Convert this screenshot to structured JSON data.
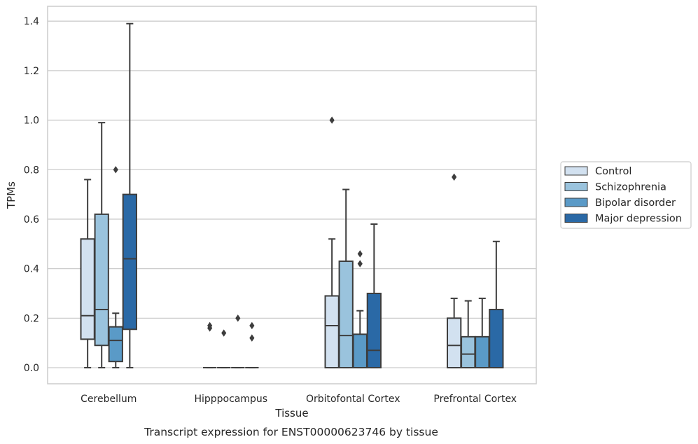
{
  "caption": "Transcript expression for ENST00000623746 by tissue",
  "chart_data": {
    "type": "boxplot",
    "xlabel": "Tissue",
    "ylabel": "TPMs",
    "ylim": [
      -0.065,
      1.46
    ],
    "yticks": [
      0.0,
      0.2,
      0.4,
      0.6,
      0.8,
      1.0,
      1.2,
      1.4
    ],
    "ytick_labels": [
      "0.0",
      "0.2",
      "0.4",
      "0.6",
      "0.8",
      "1.0",
      "1.2",
      "1.4"
    ],
    "grid": "horizontal",
    "legend_position": "right",
    "categories": [
      "Cerebellum",
      "Hipppocampus",
      "Orbitofontal Cortex",
      "Prefrontal Cortex"
    ],
    "series": [
      {
        "name": "Control",
        "color": "#d2e1f0",
        "boxes": [
          {
            "whislo": 0.0,
            "q1": 0.115,
            "med": 0.21,
            "q3": 0.52,
            "whishi": 0.76,
            "fliers": []
          },
          {
            "whislo": 0.0,
            "q1": 0.0,
            "med": 0.0,
            "q3": 0.0,
            "whishi": 0.0,
            "fliers": [
              0.16,
              0.17
            ]
          },
          {
            "whislo": 0.0,
            "q1": 0.0,
            "med": 0.17,
            "q3": 0.29,
            "whishi": 0.52,
            "fliers": [
              1.0
            ]
          },
          {
            "whislo": 0.0,
            "q1": 0.0,
            "med": 0.09,
            "q3": 0.2,
            "whishi": 0.28,
            "fliers": [
              0.77
            ]
          }
        ]
      },
      {
        "name": "Schizophrenia",
        "color": "#9ac3dd",
        "boxes": [
          {
            "whislo": 0.0,
            "q1": 0.09,
            "med": 0.235,
            "q3": 0.62,
            "whishi": 0.99,
            "fliers": []
          },
          {
            "whislo": 0.0,
            "q1": 0.0,
            "med": 0.0,
            "q3": 0.0,
            "whishi": 0.0,
            "fliers": [
              0.14
            ]
          },
          {
            "whislo": 0.0,
            "q1": 0.0,
            "med": 0.13,
            "q3": 0.43,
            "whishi": 0.72,
            "fliers": []
          },
          {
            "whislo": 0.0,
            "q1": 0.0,
            "med": 0.055,
            "q3": 0.125,
            "whishi": 0.27,
            "fliers": []
          }
        ]
      },
      {
        "name": "Bipolar disorder",
        "color": "#5a9ac7",
        "boxes": [
          {
            "whislo": 0.0,
            "q1": 0.025,
            "med": 0.11,
            "q3": 0.165,
            "whishi": 0.22,
            "fliers": [
              0.8
            ]
          },
          {
            "whislo": 0.0,
            "q1": 0.0,
            "med": 0.0,
            "q3": 0.0,
            "whishi": 0.0,
            "fliers": [
              0.2
            ]
          },
          {
            "whislo": 0.0,
            "q1": 0.0,
            "med": 0.0,
            "q3": 0.135,
            "whishi": 0.23,
            "fliers": [
              0.42,
              0.46
            ]
          },
          {
            "whislo": 0.0,
            "q1": 0.0,
            "med": 0.0,
            "q3": 0.125,
            "whishi": 0.28,
            "fliers": []
          }
        ]
      },
      {
        "name": "Major depression",
        "color": "#2a69a6",
        "boxes": [
          {
            "whislo": 0.0,
            "q1": 0.155,
            "med": 0.44,
            "q3": 0.7,
            "whishi": 1.39,
            "fliers": []
          },
          {
            "whislo": 0.0,
            "q1": 0.0,
            "med": 0.0,
            "q3": 0.0,
            "whishi": 0.0,
            "fliers": [
              0.12,
              0.17
            ]
          },
          {
            "whislo": 0.0,
            "q1": 0.0,
            "med": 0.07,
            "q3": 0.3,
            "whishi": 0.58,
            "fliers": []
          },
          {
            "whislo": 0.0,
            "q1": 0.0,
            "med": 0.0,
            "q3": 0.235,
            "whishi": 0.51,
            "fliers": []
          }
        ]
      }
    ]
  }
}
